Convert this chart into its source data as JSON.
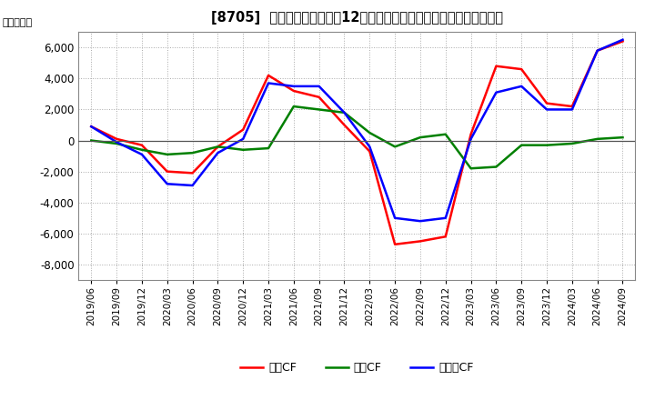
{
  "title": "[8705]  キャッシュフローの12か月移動合計の対前年同期増減額の推移",
  "ylabel": "（百万円）",
  "ylim": [
    -9000,
    7000
  ],
  "yticks": [
    -8000,
    -6000,
    -4000,
    -2000,
    0,
    2000,
    4000,
    6000
  ],
  "x_labels": [
    "2019/06",
    "2019/09",
    "2019/12",
    "2020/03",
    "2020/06",
    "2020/09",
    "2020/12",
    "2021/03",
    "2021/06",
    "2021/09",
    "2021/12",
    "2022/03",
    "2022/06",
    "2022/09",
    "2022/12",
    "2023/03",
    "2023/06",
    "2023/09",
    "2023/12",
    "2024/03",
    "2024/06",
    "2024/09"
  ],
  "eigyo_cf": [
    900,
    100,
    -300,
    -2000,
    -2100,
    -400,
    700,
    4200,
    3200,
    2800,
    1000,
    -700,
    -6700,
    -6500,
    -6200,
    400,
    4800,
    4600,
    2400,
    2200,
    5800,
    6400
  ],
  "toshi_cf": [
    0,
    -200,
    -600,
    -900,
    -800,
    -400,
    -600,
    -500,
    2200,
    2000,
    1800,
    500,
    -400,
    200,
    400,
    -1800,
    -1700,
    -300,
    -300,
    -200,
    100,
    200
  ],
  "free_cf": [
    900,
    -100,
    -900,
    -2800,
    -2900,
    -800,
    100,
    3700,
    3500,
    3500,
    1800,
    -400,
    -5000,
    -5200,
    -5000,
    100,
    3100,
    3500,
    2000,
    2000,
    5800,
    6500
  ],
  "eigyo_color": "#ff0000",
  "toshi_color": "#008000",
  "free_color": "#0000ff",
  "legend_eigyo": "営業CF",
  "legend_toshi": "投資CF",
  "legend_free": "フリーCF",
  "background_color": "#ffffff",
  "grid_color": "#aaaaaa"
}
